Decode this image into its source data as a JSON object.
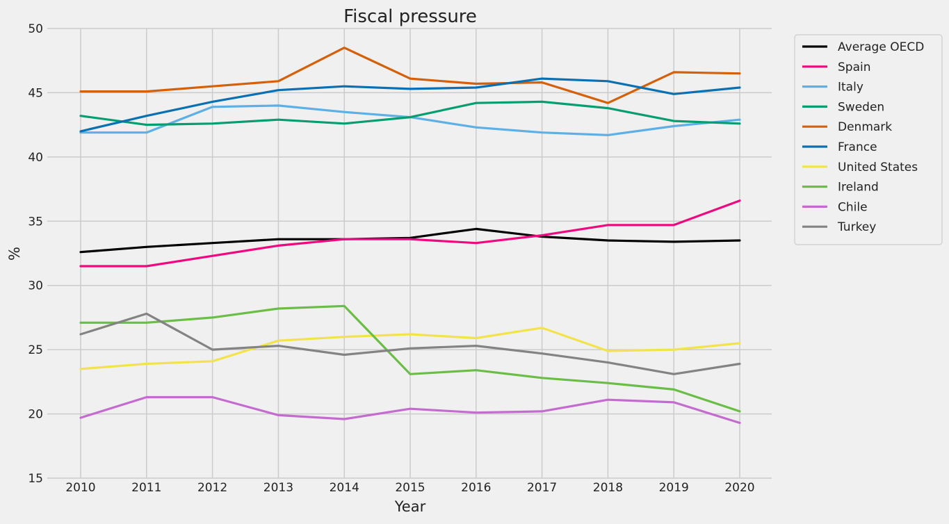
{
  "chart_data": {
    "type": "line",
    "title": "Fiscal pressure",
    "xlabel": "Year",
    "ylabel": "%",
    "ylim": [
      15,
      50
    ],
    "yticks": [
      "15",
      "20",
      "25",
      "30",
      "35",
      "40",
      "45",
      "50"
    ],
    "x": [
      "2010",
      "2011",
      "2012",
      "2013",
      "2014",
      "2015",
      "2016",
      "2017",
      "2018",
      "2019",
      "2020"
    ],
    "grid": true,
    "legend_position": "outside-top-right",
    "series": [
      {
        "name": "Average OECD",
        "color": "#000000",
        "values": [
          32.6,
          33.0,
          33.3,
          33.6,
          33.6,
          33.7,
          34.4,
          33.8,
          33.5,
          33.4,
          33.5
        ]
      },
      {
        "name": "Spain",
        "color": "#f0087e",
        "values": [
          31.5,
          31.5,
          32.3,
          33.1,
          33.6,
          33.6,
          33.3,
          33.9,
          34.7,
          34.7,
          36.6
        ]
      },
      {
        "name": "Italy",
        "color": "#5db0e5",
        "values": [
          41.9,
          41.9,
          43.9,
          44.0,
          43.5,
          43.1,
          42.3,
          41.9,
          41.7,
          42.4,
          42.9
        ]
      },
      {
        "name": "Sweden",
        "color": "#069e70",
        "values": [
          43.2,
          42.5,
          42.6,
          42.9,
          42.6,
          43.1,
          44.2,
          44.3,
          43.8,
          42.8,
          42.6
        ]
      },
      {
        "name": "Denmark",
        "color": "#d5600a",
        "values": [
          45.1,
          45.1,
          45.5,
          45.9,
          48.5,
          46.1,
          45.7,
          45.8,
          44.2,
          46.6,
          46.5
        ]
      },
      {
        "name": "France",
        "color": "#0a70b2",
        "values": [
          42.0,
          43.2,
          44.3,
          45.2,
          45.5,
          45.3,
          45.4,
          46.1,
          45.9,
          44.9,
          45.4
        ]
      },
      {
        "name": "United States",
        "color": "#f2e34b",
        "values": [
          23.5,
          23.9,
          24.1,
          25.7,
          26.0,
          26.2,
          25.9,
          26.7,
          24.9,
          25.0,
          25.5
        ]
      },
      {
        "name": "Ireland",
        "color": "#6abd45",
        "values": [
          27.1,
          27.1,
          27.5,
          28.2,
          28.4,
          23.1,
          23.4,
          22.8,
          22.4,
          21.9,
          20.2
        ]
      },
      {
        "name": "Chile",
        "color": "#c46bcf",
        "values": [
          19.7,
          21.3,
          21.3,
          19.9,
          19.6,
          20.4,
          20.1,
          20.2,
          21.1,
          20.9,
          19.3
        ]
      },
      {
        "name": "Turkey",
        "color": "#838383",
        "values": [
          26.2,
          27.8,
          25.0,
          25.3,
          24.6,
          25.1,
          25.3,
          24.7,
          24.0,
          23.1,
          23.9
        ]
      }
    ]
  }
}
